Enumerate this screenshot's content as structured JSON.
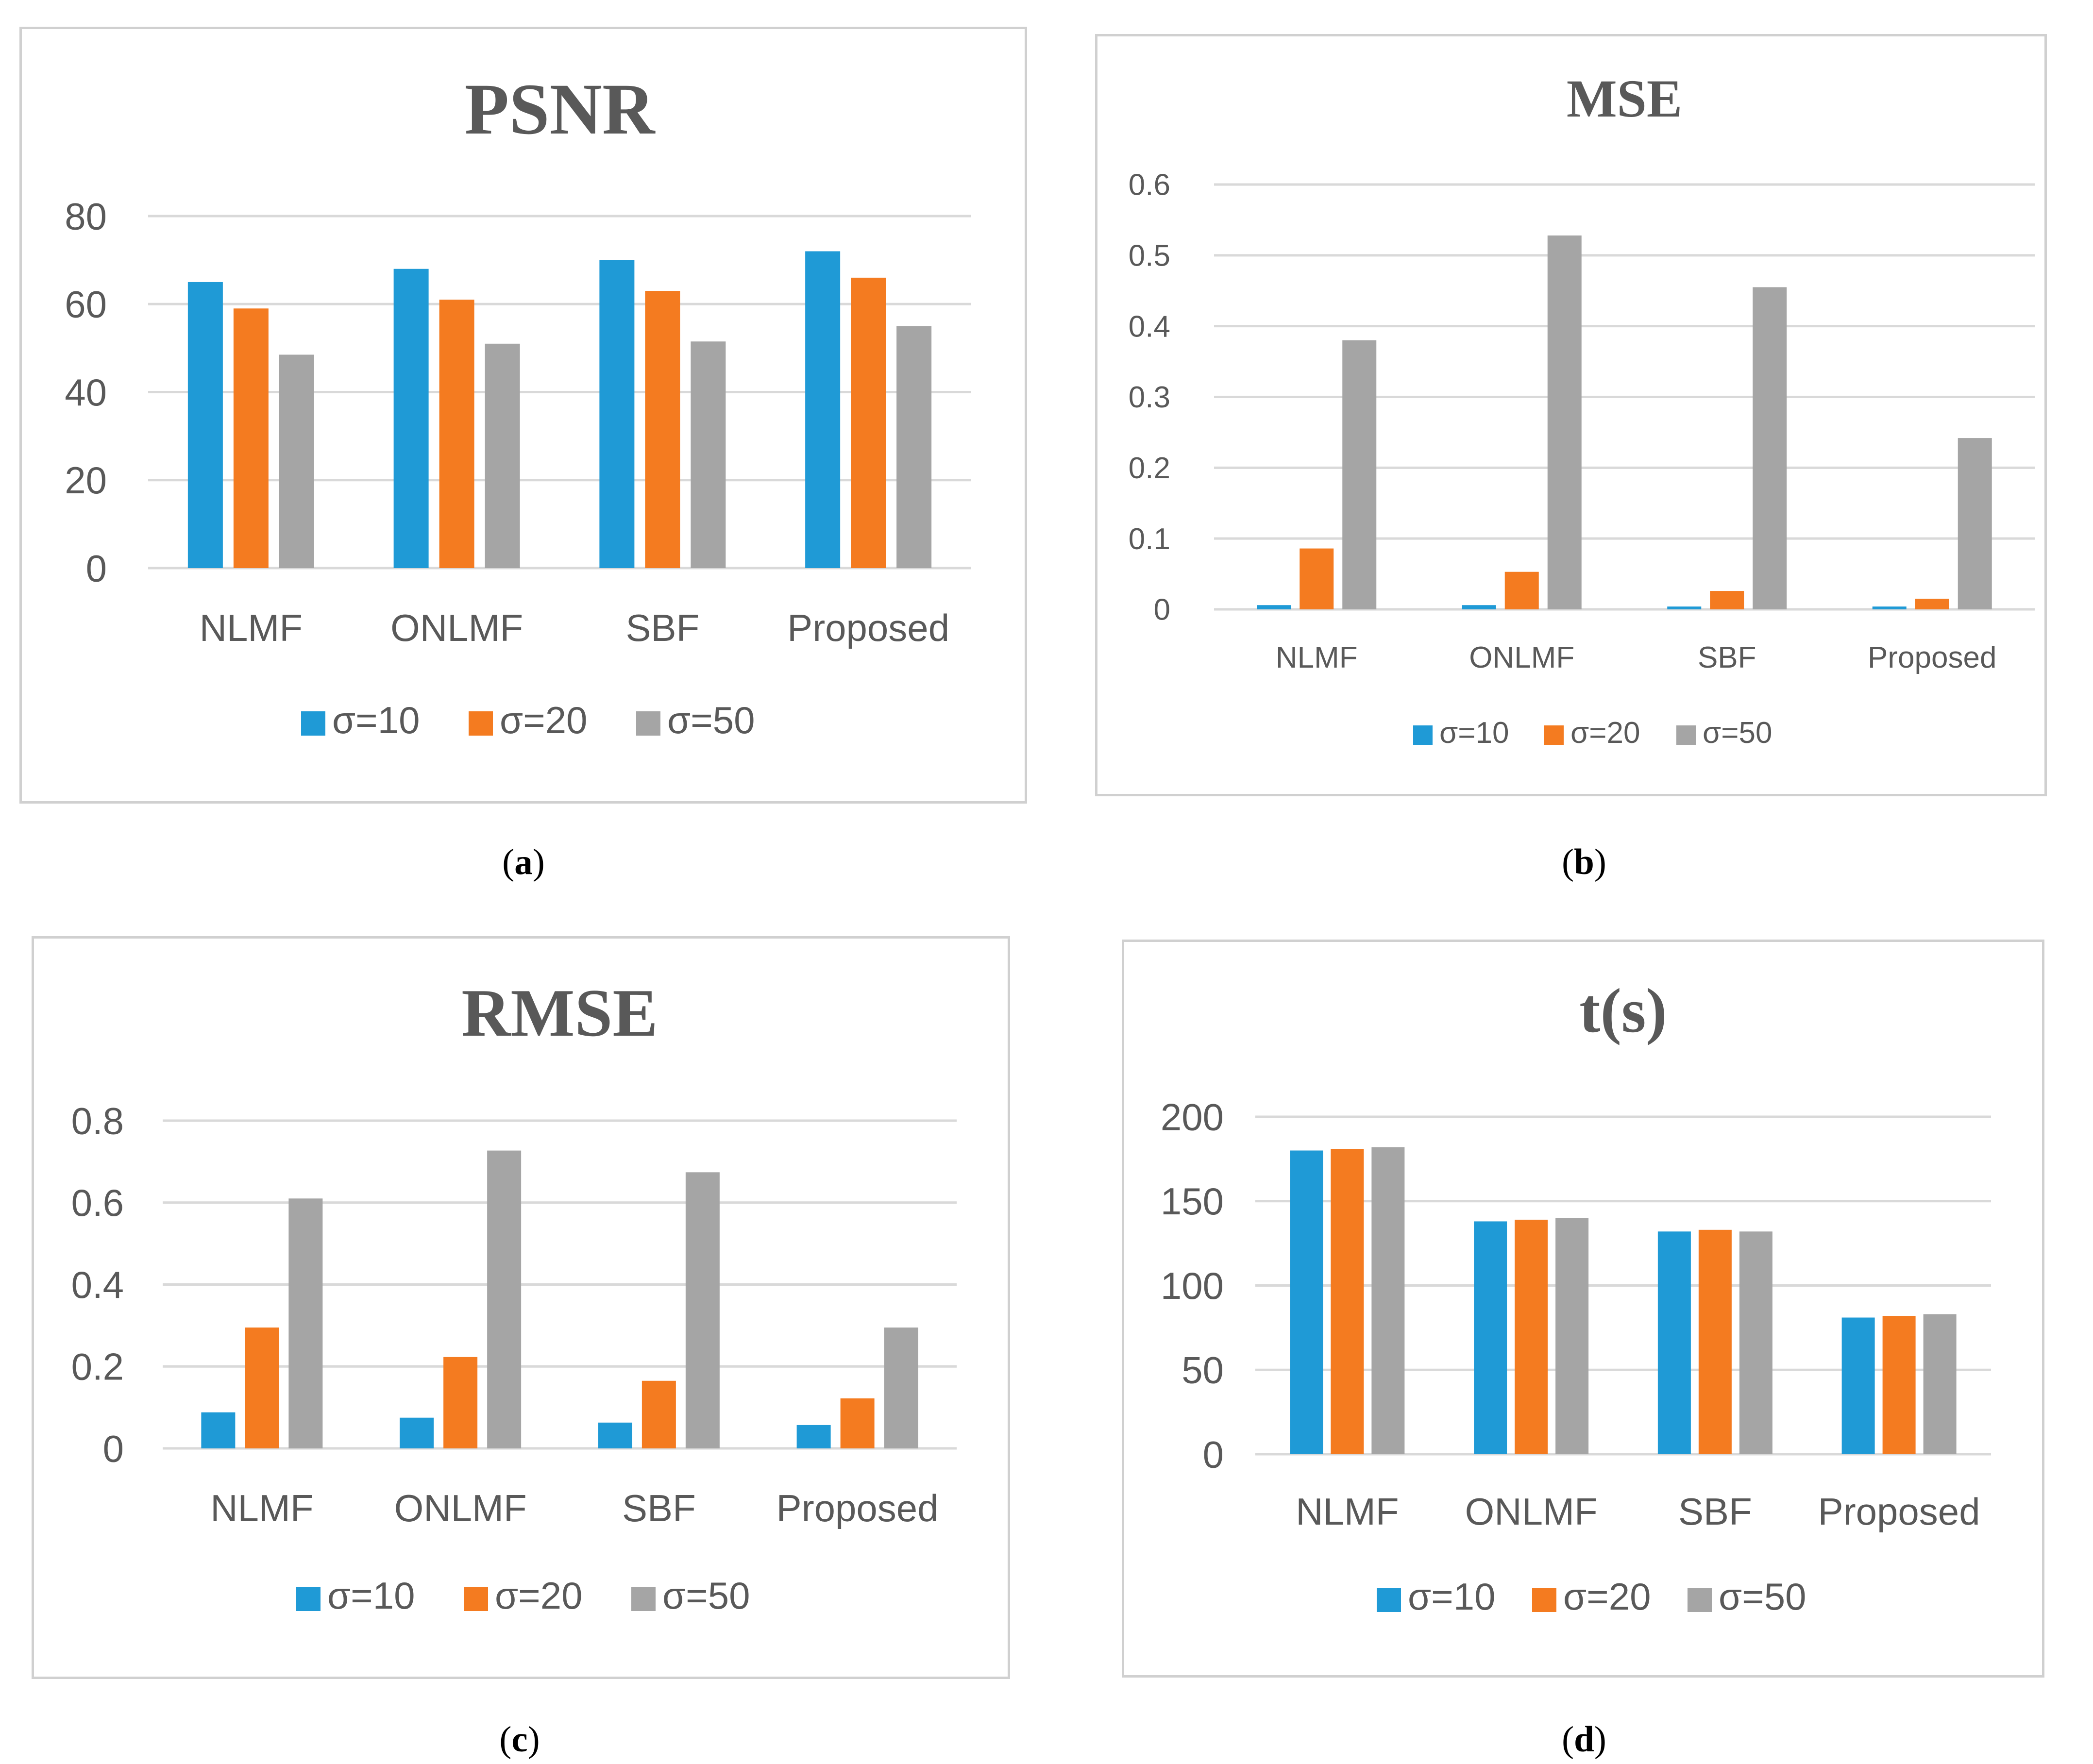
{
  "figure": {
    "panels": [
      {
        "label_open": "(",
        "label": "a",
        "label_close": ")"
      },
      {
        "label_open": "(",
        "label": "b",
        "label_close": ")"
      },
      {
        "label_open": "(",
        "label": "c",
        "label_close": ")"
      },
      {
        "label_open": "(",
        "label": "d",
        "label_close": ")"
      }
    ]
  },
  "colors": {
    "sigma10": "#1f9ad6",
    "sigma20": "#f47b20",
    "sigma50": "#a5a5a5"
  },
  "chart_data": [
    {
      "type": "bar",
      "title": "PSNR",
      "categories": [
        "NLMF",
        "ONLMF",
        "SBF",
        "Proposed"
      ],
      "series": [
        {
          "name": "σ=10",
          "values": [
            65,
            68,
            70,
            72
          ]
        },
        {
          "name": "σ=20",
          "values": [
            59,
            61,
            63,
            66
          ]
        },
        {
          "name": "σ=50",
          "values": [
            48.5,
            51,
            51.5,
            55
          ]
        }
      ],
      "yticks": [
        "0",
        "20",
        "40",
        "60",
        "80"
      ],
      "ylim": [
        0,
        80
      ],
      "xlabel": "",
      "ylabel": "",
      "legend": "bottom",
      "grid": true
    },
    {
      "type": "bar",
      "title": "MSE",
      "categories": [
        "NLMF",
        "ONLMF",
        "SBF",
        "Proposed"
      ],
      "series": [
        {
          "name": "σ=10",
          "values": [
            0.006,
            0.006,
            0.004,
            0.004
          ]
        },
        {
          "name": "σ=20",
          "values": [
            0.086,
            0.053,
            0.026,
            0.015
          ]
        },
        {
          "name": "σ=50",
          "values": [
            0.38,
            0.528,
            0.455,
            0.242
          ]
        }
      ],
      "yticks": [
        "0",
        "0.1",
        "0.2",
        "0.3",
        "0.4",
        "0.5",
        "0.6"
      ],
      "ylim": [
        0,
        0.6
      ],
      "xlabel": "",
      "ylabel": "",
      "legend": "bottom",
      "grid": true
    },
    {
      "type": "bar",
      "title": "RMSE",
      "categories": [
        "NLMF",
        "ONLMF",
        "SBF",
        "Proposed"
      ],
      "series": [
        {
          "name": "σ=10",
          "values": [
            0.088,
            0.075,
            0.063,
            0.057
          ]
        },
        {
          "name": "σ=20",
          "values": [
            0.295,
            0.223,
            0.165,
            0.122
          ]
        },
        {
          "name": "σ=50",
          "values": [
            0.61,
            0.727,
            0.674,
            0.295
          ]
        }
      ],
      "yticks": [
        "0",
        "0.2",
        "0.4",
        "0.6",
        "0.8"
      ],
      "ylim": [
        0,
        0.8
      ],
      "xlabel": "",
      "ylabel": "",
      "legend": "bottom",
      "grid": true
    },
    {
      "type": "bar",
      "title": "t(s)",
      "categories": [
        "NLMF",
        "ONLMF",
        "SBF",
        "Proposed"
      ],
      "series": [
        {
          "name": "σ=10",
          "values": [
            180,
            138,
            132,
            81
          ]
        },
        {
          "name": "σ=20",
          "values": [
            181,
            139,
            133,
            82
          ]
        },
        {
          "name": "σ=50",
          "values": [
            182,
            140,
            132,
            83
          ]
        }
      ],
      "yticks": [
        "0",
        "50",
        "100",
        "150",
        "200"
      ],
      "ylim": [
        0,
        200
      ],
      "xlabel": "",
      "ylabel": "",
      "legend": "bottom",
      "grid": true
    }
  ]
}
